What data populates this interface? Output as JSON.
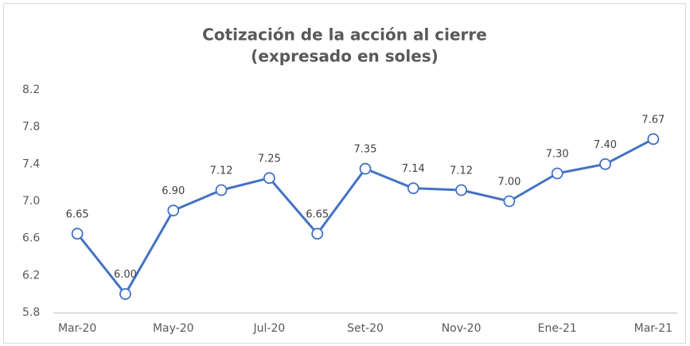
{
  "chart_data": {
    "type": "line",
    "title": "Cotización de la acción al cierre",
    "subtitle": "(expresado en soles)",
    "categories": [
      "Mar-20",
      null,
      "May-20",
      null,
      "Jul-20",
      null,
      "Set-20",
      null,
      "Nov-20",
      null,
      "Ene-21",
      null,
      "Mar-21"
    ],
    "series": [
      {
        "name": "Cotización",
        "color": "#4472c4",
        "values": [
          6.65,
          6.0,
          6.9,
          7.12,
          7.25,
          6.65,
          7.35,
          7.14,
          7.12,
          7.0,
          7.3,
          7.4,
          7.67
        ],
        "value_labels": [
          "6.65",
          "6.00",
          "6.90",
          "7.12",
          "7.25",
          "6.65",
          "7.35",
          "7.14",
          "7.12",
          "7.00",
          "7.30",
          "7.40",
          "7.67"
        ]
      }
    ],
    "ylim": [
      5.8,
      8.2
    ],
    "yticks": [
      5.8,
      6.2,
      6.6,
      {
        "value": 7,
        "label": "7.0"
      },
      7.4,
      7.8,
      8.2
    ],
    "grid": false
  }
}
